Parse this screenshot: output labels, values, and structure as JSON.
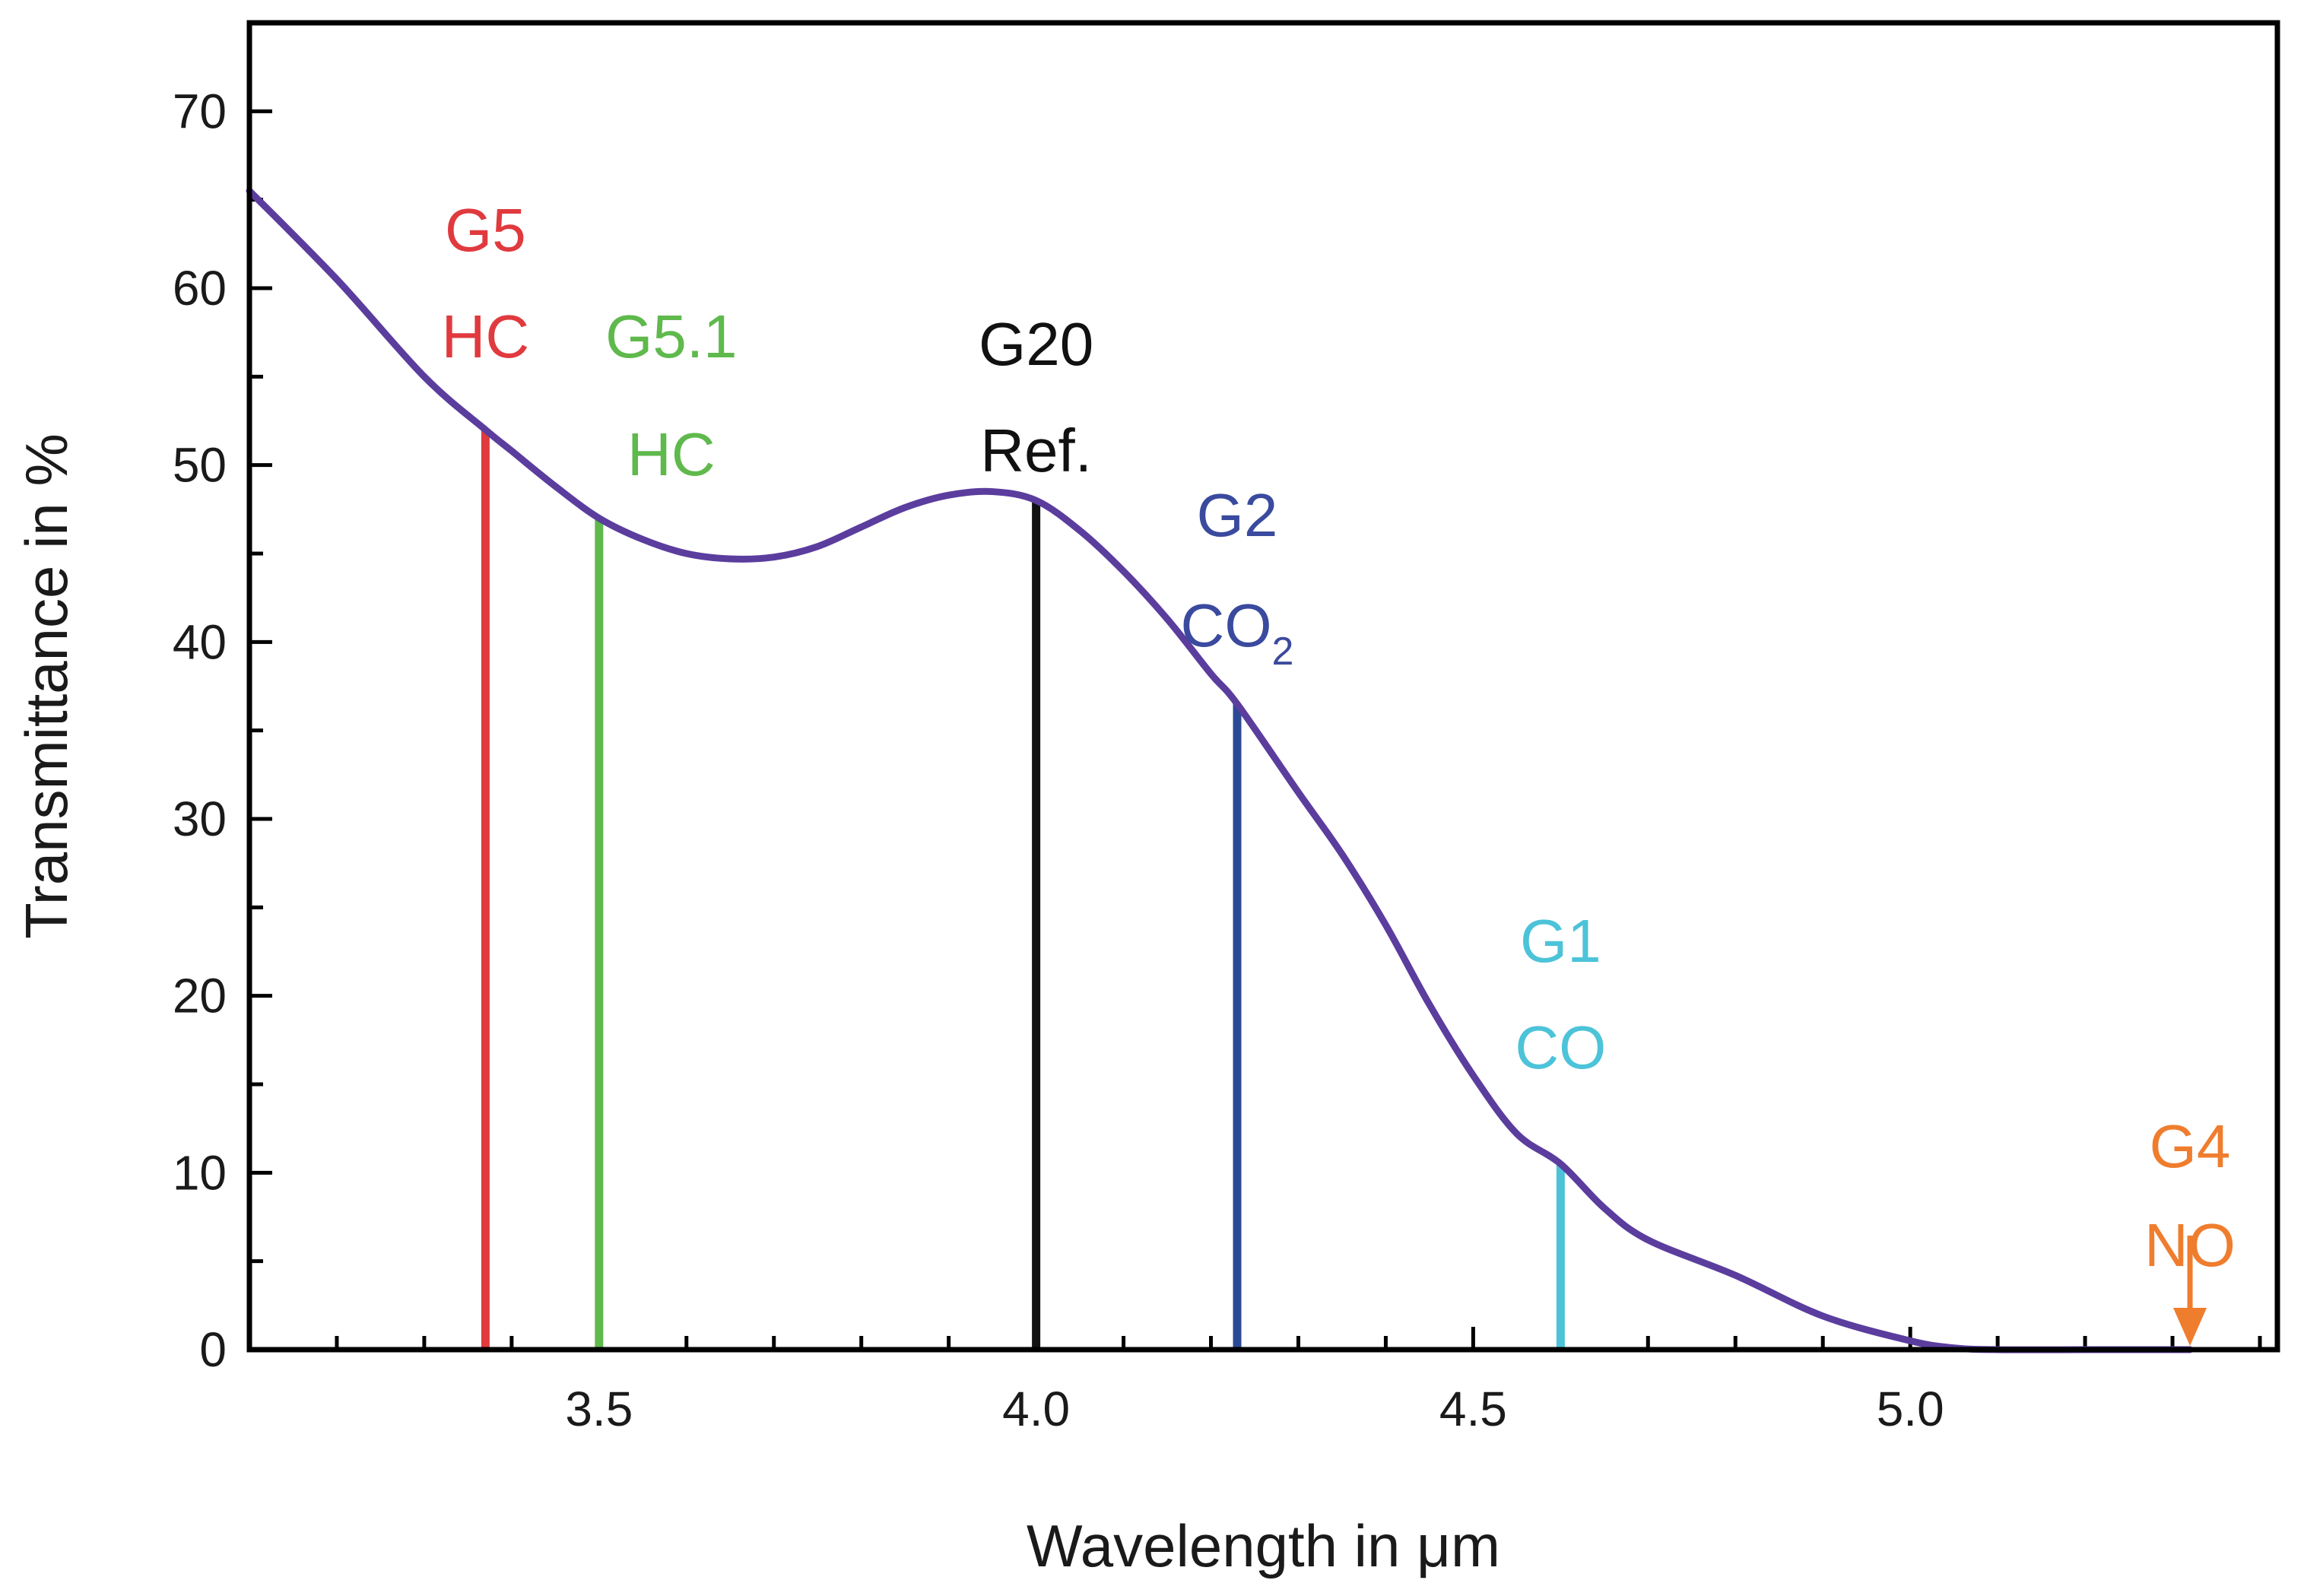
{
  "chart_data": {
    "type": "line",
    "xlabel": "Wavelength in μm",
    "ylabel": "Transmittance in %",
    "xlim": [
      3.1,
      5.42
    ],
    "ylim": [
      0,
      75
    ],
    "x_ticks": [
      {
        "value": 3.5,
        "label": "3.5"
      },
      {
        "value": 4.0,
        "label": "4.0"
      },
      {
        "value": 4.5,
        "label": "4.5"
      },
      {
        "value": 5.0,
        "label": "5.0"
      }
    ],
    "x_minor_step": 0.1,
    "y_ticks": [
      {
        "value": 0,
        "label": "0"
      },
      {
        "value": 10,
        "label": "10"
      },
      {
        "value": 20,
        "label": "20"
      },
      {
        "value": 30,
        "label": "30"
      },
      {
        "value": 40,
        "label": "40"
      },
      {
        "value": 50,
        "label": "50"
      },
      {
        "value": 60,
        "label": "60"
      },
      {
        "value": 70,
        "label": "70"
      }
    ],
    "y_minor_step": 5,
    "series": [
      {
        "name": "Transmittance",
        "color": "#5b3d9e",
        "x": [
          3.1,
          3.2,
          3.3,
          3.37,
          3.4,
          3.45,
          3.5,
          3.55,
          3.6,
          3.65,
          3.7,
          3.75,
          3.8,
          3.85,
          3.9,
          3.95,
          4.0,
          4.05,
          4.1,
          4.15,
          4.2,
          4.23,
          4.3,
          4.35,
          4.4,
          4.45,
          4.5,
          4.55,
          4.6,
          4.65,
          4.7,
          4.8,
          4.9,
          5.0,
          5.05,
          5.1,
          5.2,
          5.3,
          5.32
        ],
        "y": [
          65.5,
          60.5,
          55.0,
          52.0,
          50.8,
          48.8,
          47.0,
          45.8,
          45.0,
          44.7,
          44.8,
          45.4,
          46.5,
          47.6,
          48.3,
          48.5,
          48.0,
          46.3,
          44.0,
          41.3,
          38.2,
          36.5,
          31.5,
          28.0,
          24.0,
          19.5,
          15.5,
          12.2,
          10.5,
          8.0,
          6.2,
          4.2,
          1.9,
          0.5,
          0.1,
          0.0,
          0.0,
          0.0,
          0.0
        ]
      }
    ],
    "filter_bands": [
      {
        "id": "G5",
        "wavelength": 3.37,
        "value": 52.0,
        "line_color": "#e03a3e",
        "text_color": "#e03a3e",
        "label": "G5",
        "gas": "HC"
      },
      {
        "id": "G5.1",
        "wavelength": 3.5,
        "value": 47.0,
        "line_color": "#5fb94c",
        "text_color": "#5fb94c",
        "label": "G5.1",
        "gas": "HC"
      },
      {
        "id": "G20",
        "wavelength": 4.0,
        "value": 48.0,
        "line_color": "#111111",
        "text_color": "#111111",
        "label": "G20",
        "gas": "Ref."
      },
      {
        "id": "G2",
        "wavelength": 4.23,
        "value": 36.5,
        "line_color": "#2b4a96",
        "text_color": "#3a4a9e",
        "label": "G2",
        "gas": "CO",
        "gas_subscript": "2"
      },
      {
        "id": "G1",
        "wavelength": 4.6,
        "value": 10.5,
        "line_color": "#4cc3d9",
        "text_color": "#4cc3d9",
        "label": "G1",
        "gas": "CO"
      },
      {
        "id": "G4",
        "wavelength": 5.32,
        "value": 0.0,
        "line_color": "#ef7d2e",
        "text_color": "#ef7d2e",
        "label": "G4",
        "gas": "NO",
        "marker": "arrow"
      }
    ]
  }
}
